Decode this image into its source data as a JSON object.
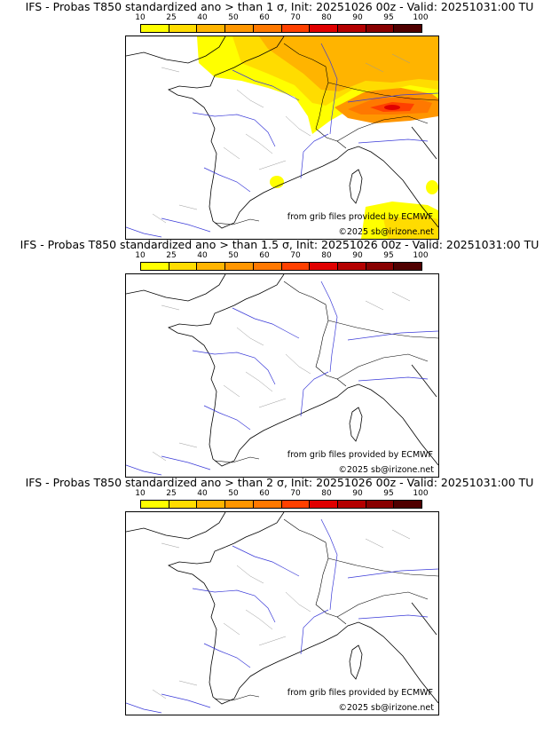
{
  "legend": {
    "ticks": [
      "10",
      "25",
      "40",
      "50",
      "60",
      "70",
      "80",
      "90",
      "95",
      "100"
    ],
    "colors": [
      "#ffff00",
      "#ffdc00",
      "#ffb400",
      "#ff9600",
      "#ff7800",
      "#ff4000",
      "#e00000",
      "#b40000",
      "#880000",
      "#500000"
    ]
  },
  "panels": [
    {
      "title": "IFS - Probas T850  standardized ano > than 1 σ, Init: 20251026 00z - Valid: 20251031:00 TU",
      "has_shading": true
    },
    {
      "title": "IFS - Probas T850  standardized ano > than 1.5 σ, Init: 20251026 00z - Valid: 20251031:00 TU",
      "has_shading": false
    },
    {
      "title": "IFS - Probas T850  standardized ano > than 2 σ, Init: 20251026 00z - Valid: 20251031:00 TU",
      "has_shading": false
    }
  ],
  "credits": {
    "source": "from grib files provided by ECMWF",
    "copyright": "©2025 sb@irizone.net"
  }
}
